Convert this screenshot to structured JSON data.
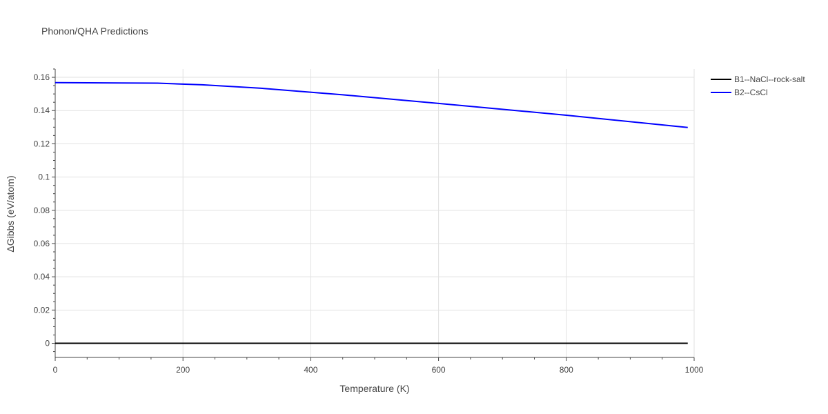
{
  "chart_data": {
    "type": "line",
    "title": "Phonon/QHA Predictions",
    "xlabel": "Temperature (K)",
    "ylabel": "ΔGibbs (eV/atom)",
    "xlim": [
      0,
      1000
    ],
    "ylim": [
      -0.0085,
      0.165
    ],
    "x_ticks": [
      0,
      200,
      400,
      600,
      800,
      1000
    ],
    "x_tick_labels": [
      "0",
      "200",
      "400",
      "600",
      "800",
      "1000"
    ],
    "y_ticks": [
      0,
      0.02,
      0.04,
      0.06,
      0.08,
      0.1,
      0.12,
      0.14,
      0.16
    ],
    "y_tick_labels": [
      "0",
      "0.02",
      "0.04",
      "0.06",
      "0.08",
      "0.1",
      "0.12",
      "0.14",
      "0.16"
    ],
    "grid": true,
    "legend_position": "top-right",
    "series": [
      {
        "name": "B1--NaCl--rock-salt",
        "color": "#000000",
        "x": [
          0,
          990
        ],
        "y": [
          0,
          0
        ]
      },
      {
        "name": "B2--CsCl",
        "color": "#0000ff",
        "x": [
          0,
          100,
          160,
          230,
          320,
          450,
          600,
          800,
          990
        ],
        "y": [
          0.1568,
          0.1566,
          0.1565,
          0.1555,
          0.1535,
          0.1495,
          0.1443,
          0.1372,
          0.1298
        ]
      }
    ]
  }
}
